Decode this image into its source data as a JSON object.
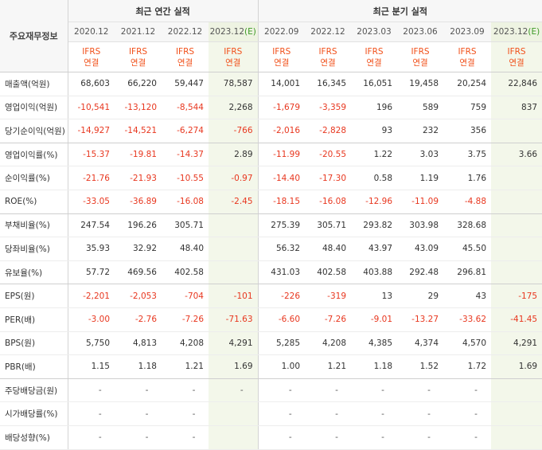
{
  "header": {
    "corner_label": "주요재무정보",
    "annual_title": "최근 연간 실적",
    "quarterly_title": "최근 분기 실적",
    "periods": [
      "2020.12",
      "2021.12",
      "2022.12",
      "2023.12",
      "2022.09",
      "2022.12",
      "2023.03",
      "2023.06",
      "2023.09",
      "2023.12"
    ],
    "estimate_mark": "(E)",
    "gaap_top": "IFRS",
    "gaap_bottom": "연결"
  },
  "colors": {
    "negative": "#e8371f",
    "gaap": "#f1501a",
    "estimate_bg": "#f3f7ea",
    "estimate_mark": "#3d9a26"
  },
  "rows": [
    {
      "label": "매출액(억원)",
      "values": [
        "68,603",
        "66,220",
        "59,447",
        "78,587",
        "14,001",
        "16,345",
        "16,051",
        "19,458",
        "20,254",
        "22,846"
      ]
    },
    {
      "label": "영업이익(억원)",
      "values": [
        "-10,541",
        "-13,120",
        "-8,544",
        "2,268",
        "-1,679",
        "-3,359",
        "196",
        "589",
        "759",
        "837"
      ]
    },
    {
      "label": "당기순이익(억원)",
      "values": [
        "-14,927",
        "-14,521",
        "-6,274",
        "-766",
        "-2,016",
        "-2,828",
        "93",
        "232",
        "356",
        ""
      ]
    },
    {
      "label": "영업이익률(%)",
      "values": [
        "-15.37",
        "-19.81",
        "-14.37",
        "2.89",
        "-11.99",
        "-20.55",
        "1.22",
        "3.03",
        "3.75",
        "3.66"
      ]
    },
    {
      "label": "순이익률(%)",
      "values": [
        "-21.76",
        "-21.93",
        "-10.55",
        "-0.97",
        "-14.40",
        "-17.30",
        "0.58",
        "1.19",
        "1.76",
        ""
      ]
    },
    {
      "label": "ROE(%)",
      "values": [
        "-33.05",
        "-36.89",
        "-16.08",
        "-2.45",
        "-18.15",
        "-16.08",
        "-12.96",
        "-11.09",
        "-4.88",
        ""
      ]
    },
    {
      "label": "부채비율(%)",
      "values": [
        "247.54",
        "196.26",
        "305.71",
        "",
        "275.39",
        "305.71",
        "293.82",
        "303.98",
        "328.68",
        ""
      ]
    },
    {
      "label": "당좌비율(%)",
      "values": [
        "35.93",
        "32.92",
        "48.40",
        "",
        "56.32",
        "48.40",
        "43.97",
        "43.09",
        "45.50",
        ""
      ]
    },
    {
      "label": "유보율(%)",
      "values": [
        "57.72",
        "469.56",
        "402.58",
        "",
        "431.03",
        "402.58",
        "403.88",
        "292.48",
        "296.81",
        ""
      ]
    },
    {
      "label": "EPS(원)",
      "values": [
        "-2,201",
        "-2,053",
        "-704",
        "-101",
        "-226",
        "-319",
        "13",
        "29",
        "43",
        "-175"
      ]
    },
    {
      "label": "PER(배)",
      "values": [
        "-3.00",
        "-2.76",
        "-7.26",
        "-71.63",
        "-6.60",
        "-7.26",
        "-9.01",
        "-13.27",
        "-33.62",
        "-41.45"
      ]
    },
    {
      "label": "BPS(원)",
      "values": [
        "5,750",
        "4,813",
        "4,208",
        "4,291",
        "5,285",
        "4,208",
        "4,385",
        "4,374",
        "4,570",
        "4,291"
      ]
    },
    {
      "label": "PBR(배)",
      "values": [
        "1.15",
        "1.18",
        "1.21",
        "1.69",
        "1.00",
        "1.21",
        "1.18",
        "1.52",
        "1.72",
        "1.69"
      ]
    },
    {
      "label": "주당배당금(원)",
      "values": [
        "-",
        "-",
        "-",
        "-",
        "-",
        "-",
        "-",
        "-",
        "-",
        ""
      ]
    },
    {
      "label": "시가배당률(%)",
      "values": [
        "-",
        "-",
        "-",
        "",
        "-",
        "-",
        "-",
        "-",
        "-",
        ""
      ]
    },
    {
      "label": "배당성향(%)",
      "values": [
        "-",
        "-",
        "-",
        "",
        "-",
        "-",
        "-",
        "-",
        "-",
        ""
      ]
    }
  ]
}
